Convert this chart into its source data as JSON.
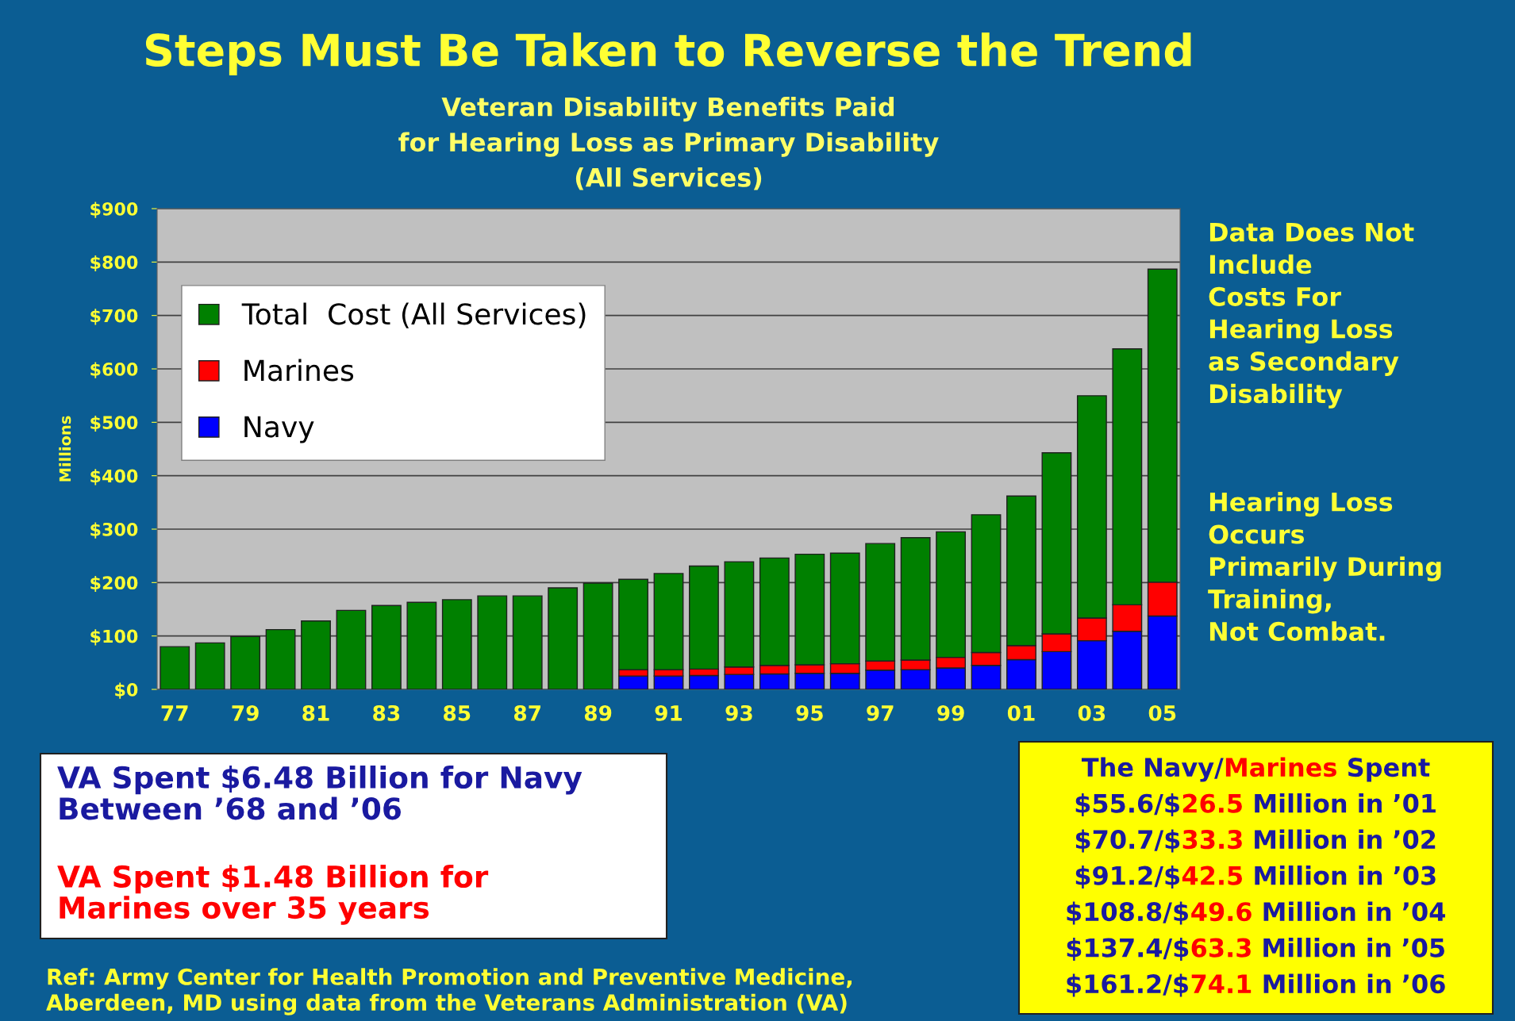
{
  "chart_data": {
    "type": "bar",
    "stacked": true,
    "title": "Steps Must Be Taken to Reverse the Trend",
    "subtitle": "Veteran Disability Benefits Paid\nfor Hearing Loss as Primary Disability\n(All Services)",
    "ylabel": "Millions",
    "categories": [
      "77",
      null,
      "79",
      null,
      "81",
      null,
      "83",
      null,
      "85",
      null,
      "87",
      null,
      "89",
      null,
      "91",
      null,
      "93",
      null,
      "95",
      null,
      "97",
      null,
      "99",
      null,
      "01",
      null,
      "03",
      null,
      "05"
    ],
    "series": [
      {
        "name": "Navy",
        "color": "#0000ff",
        "values": [
          0,
          0,
          0,
          0,
          0,
          0,
          0,
          0,
          0,
          0,
          0,
          0,
          0,
          25,
          25,
          26,
          28,
          29,
          30,
          30,
          36,
          37,
          40,
          45,
          55.6,
          70.7,
          91.2,
          108.8,
          137.4
        ]
      },
      {
        "name": "Marines",
        "color": "#ff0000",
        "values": [
          0,
          0,
          0,
          0,
          0,
          0,
          0,
          0,
          0,
          0,
          0,
          0,
          0,
          12,
          12,
          12,
          14,
          16,
          16,
          18,
          17,
          18,
          20,
          24,
          26.5,
          33.3,
          42.5,
          49.6,
          63.3
        ]
      },
      {
        "name": "Total  Cost (All Services)",
        "color": "#008000",
        "values": [
          80,
          87,
          99,
          112,
          128,
          148,
          157,
          163,
          168,
          175,
          175,
          190,
          199,
          169,
          180,
          193,
          197,
          201,
          207,
          207,
          220,
          229,
          235,
          258,
          280,
          339,
          416,
          479,
          586
        ]
      }
    ],
    "ylim": [
      0,
      900
    ],
    "yticks": [
      {
        "value": 0,
        "label": "$0"
      },
      {
        "value": 100,
        "label": "$100"
      },
      {
        "value": 200,
        "label": "$200"
      },
      {
        "value": 300,
        "label": "$300"
      },
      {
        "value": 400,
        "label": "$400"
      },
      {
        "value": 500,
        "label": "$500"
      },
      {
        "value": 600,
        "label": "$600"
      },
      {
        "value": 700,
        "label": "$700"
      },
      {
        "value": 800,
        "label": "$800"
      },
      {
        "value": 900,
        "label": "$900"
      }
    ],
    "grid": "y",
    "legend": "top left",
    "annotations": [
      "Data Does Not\nInclude\nCosts For\nHearing Loss\nas Secondary\nDisability",
      "Hearing Loss\nOccurs\nPrimarily During\nTraining,\nNot Combat.",
      "VA Spent $6.48 Billion for Navy\nBetween ’68 and ’06",
      "VA Spent $1.48 Billion for\nMarines over 35 years",
      "Ref: Army Center for Health Promotion and Preventive Medicine,\nAberdeen, MD using data from the Veterans Administration (VA)",
      "The Navy/",
      "Marines",
      " Spent",
      "$55.6/$",
      "26.5",
      " Million in ’01",
      "$70.7/$",
      "33.3",
      " Million in ’02",
      "$91.2/$",
      "42.5",
      " Million in ’03",
      "$108.8/$",
      "49.6",
      " Million in ’04",
      "$137.4/$",
      "63.3",
      " Million in ’05",
      "$161.2/$",
      "74.1",
      " Million in ’06"
    ]
  }
}
